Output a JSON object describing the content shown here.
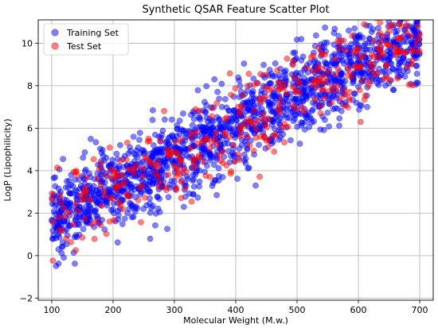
{
  "chart_data": {
    "type": "scatter",
    "title": "Synthetic QSAR Feature Scatter Plot",
    "xlabel": "Molecular Weight (M.w.)",
    "ylabel": "LogP (Lipophilicity)",
    "xlim": [
      78,
      722
    ],
    "ylim": [
      -2.1,
      11.1
    ],
    "xticks": [
      100,
      200,
      300,
      400,
      500,
      600,
      700
    ],
    "yticks": [
      -2,
      0,
      2,
      4,
      6,
      8,
      10
    ],
    "grid": true,
    "legend_position": "top-left",
    "series": [
      {
        "name": "Training Set",
        "color": "#0000ff",
        "alpha": 0.5,
        "count": 1600,
        "relation": "logP ≈ 0.0145 × MW + 0.3, MW uniform over 100–700, logP residual spread ≈ 1.0"
      },
      {
        "name": "Test Set",
        "color": "#ff0000",
        "alpha": 0.5,
        "count": 400,
        "relation": "logP ≈ 0.0145 × MW + 0.3, MW uniform over 100–700, logP residual spread ≈ 1.0"
      }
    ]
  }
}
